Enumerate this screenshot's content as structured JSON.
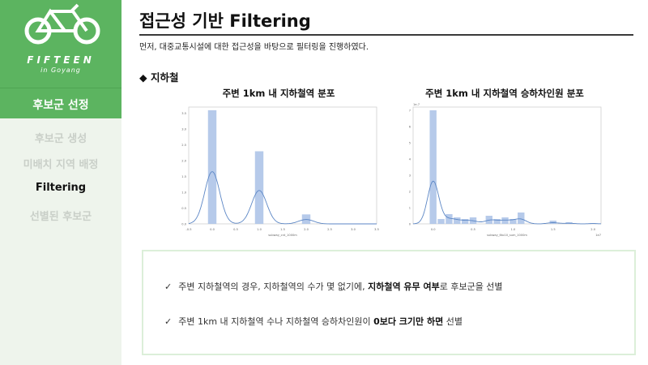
{
  "sidebar": {
    "logo_main": "FIFTEEN",
    "logo_sub": "in Goyang",
    "section": "후보군 선정",
    "items": [
      {
        "label": "후보군 생성",
        "active": false
      },
      {
        "label": "미배치 지역 배정",
        "active": false
      },
      {
        "label": "Filtering",
        "active": true
      },
      {
        "label": "선별된 후보군",
        "active": false
      }
    ]
  },
  "main": {
    "title": "접근성 기반 Filtering",
    "subtitle": "먼저, 대중교통시설에 대한 접근성을 바탕으로 필터링을 진행하였다.",
    "bullet": "◆ 지하철"
  },
  "charts": {
    "left_title": "주변 1km 내 지하철역 분포",
    "right_title": "주변 1km 내 지하철역 승하차인원 분포"
  },
  "chart_data": [
    {
      "type": "bar",
      "title": "주변 1km 내 지하철역 분포",
      "xlabel": "subway_cnt_1000m",
      "ylabel": "",
      "x": [
        0.0,
        1.0,
        2.0
      ],
      "values": [
        3.6,
        2.3,
        0.3
      ],
      "xlim": [
        -0.5,
        3.5
      ],
      "ylim": [
        0,
        3.7
      ],
      "xticks": [
        "-0.5",
        "0.0",
        "0.5",
        "1.0",
        "1.5",
        "2.0",
        "2.5",
        "3.0",
        "3.5"
      ],
      "yticks": [
        "0.0",
        "0.5",
        "1.0",
        "1.5",
        "2.0",
        "2.5",
        "3.0",
        "3.5"
      ],
      "color": "#aec4e8",
      "kde_color": "#5b86c5"
    },
    {
      "type": "bar",
      "title": "주변 1km 내 지하철역 승하차인원 분포",
      "xlabel": "subway_6to10_sum_1000m",
      "ylabel": "",
      "axis_exponent_y": "1e-7",
      "axis_exponent_x": "1e7",
      "x": [
        0.0,
        0.1,
        0.2,
        0.3,
        0.4,
        0.5,
        0.6,
        0.7,
        0.8,
        0.9,
        1.0,
        1.1,
        1.2,
        1.3,
        1.4,
        1.5,
        1.6,
        1.7,
        1.8,
        1.9,
        2.0
      ],
      "values": [
        7.0,
        0.3,
        0.6,
        0.4,
        0.3,
        0.4,
        0.0,
        0.5,
        0.3,
        0.4,
        0.3,
        0.7,
        0.0,
        0.0,
        0.0,
        0.2,
        0.0,
        0.1,
        0.0,
        0.0,
        0.05
      ],
      "xlim": [
        -0.25,
        2.1
      ],
      "ylim": [
        0,
        7.2
      ],
      "xticks": [
        "0.0",
        "0.5",
        "1.0",
        "1.5",
        "2.0"
      ],
      "yticks": [
        "0",
        "1",
        "2",
        "3",
        "4",
        "5",
        "6",
        "7"
      ],
      "color": "#aec4e8",
      "kde_color": "#5b86c5"
    }
  ],
  "notes": {
    "line1": {
      "check": "✓",
      "pre": "주변 지하철역의 경우, 지하철역의 수가 몇 없기에, ",
      "bold": "지하철역 유무 여부",
      "post": "로 후보군을 선별"
    },
    "line2": {
      "check": "✓",
      "pre": "주변 1km 내 지하철역 수나 지하철역 승하차인원이 ",
      "bold": "0보다 크기만 하면",
      "post": " 선별"
    }
  },
  "colors": {
    "brand_green": "#5cb460",
    "sidebar_bg": "#eef4ec",
    "bar": "#aec4e8",
    "kde": "#5b86c5"
  }
}
